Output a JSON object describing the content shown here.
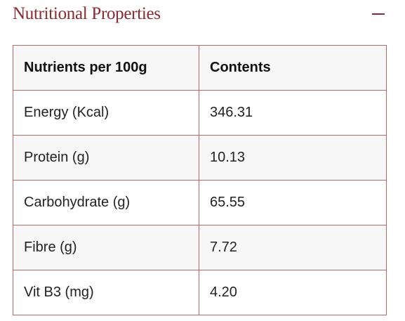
{
  "section": {
    "title": "Nutritional Properties",
    "toggle_icon": "minus-icon"
  },
  "table": {
    "headers": [
      "Nutrients per 100g",
      "Contents"
    ],
    "rows": [
      [
        "Energy (Kcal)",
        "346.31"
      ],
      [
        "Protein (g)",
        "10.13"
      ],
      [
        "Carbohydrate (g)",
        "65.55"
      ],
      [
        "Fibre (g)",
        "7.72"
      ],
      [
        "Vit B3 (mg)",
        "4.20"
      ]
    ]
  },
  "colors": {
    "accent": "#8a2a2e",
    "border": "#b56a6a",
    "row_alt": "#f7f7f7",
    "text": "#222222"
  }
}
